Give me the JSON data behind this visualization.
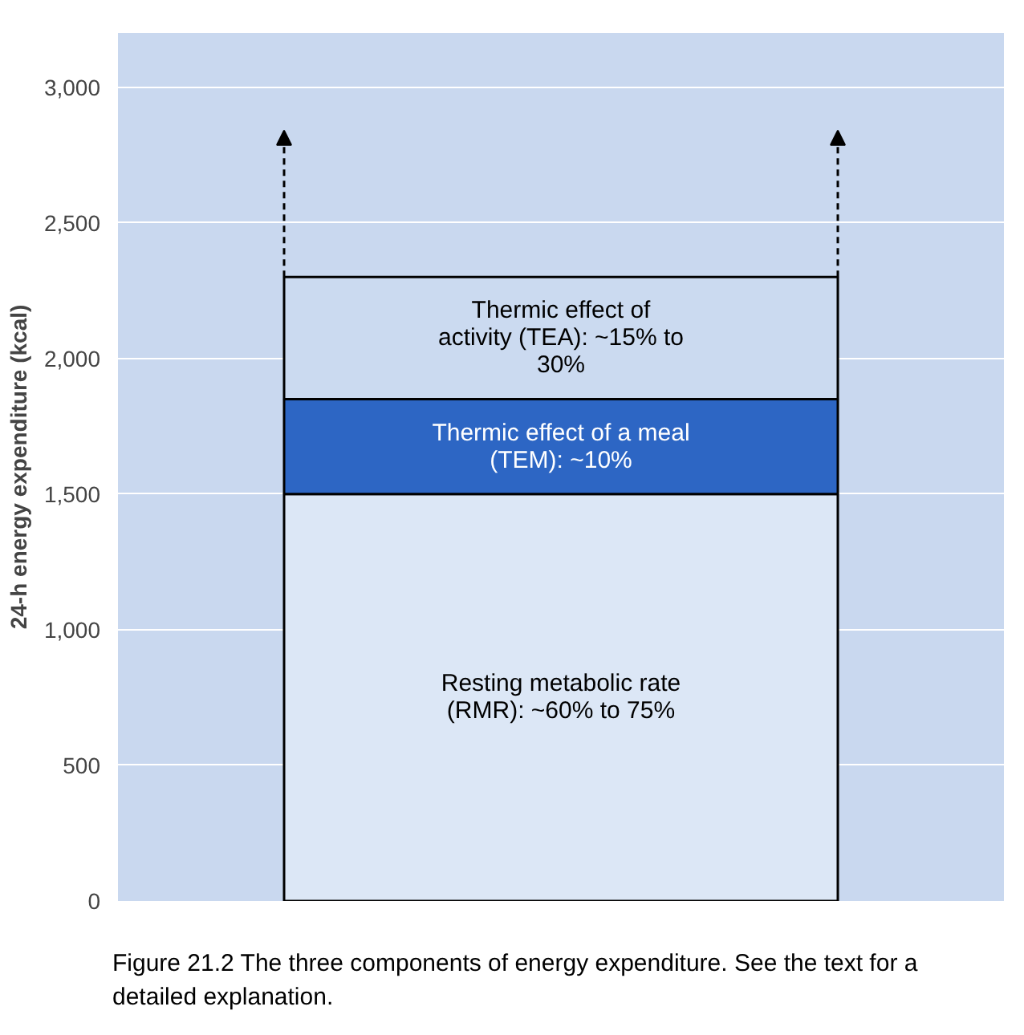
{
  "chart_data": {
    "type": "bar",
    "stacked": true,
    "categories": [
      null
    ],
    "series": [
      {
        "name": "Resting metabolic rate (RMR): ~60% to 75%",
        "color": "#dce7f6",
        "values": [
          1500
        ]
      },
      {
        "name": "Thermic effect of a meal (TEM): ~10%",
        "color": "#2d66c4",
        "values": [
          350
        ]
      },
      {
        "name": "Thermic effect of activity (TEA): ~15% to 30%",
        "color": "#cbdaf0",
        "values": [
          450
        ]
      }
    ],
    "ylabel": "24-h energy expenditure (kcal)",
    "ylim": [
      0,
      3200
    ],
    "yticks": [
      0,
      {
        "value": 500,
        "label": "500"
      },
      {
        "value": 1000,
        "label": "1,000"
      },
      {
        "value": 1500,
        "label": "1,500"
      },
      {
        "value": 2000,
        "label": "2,000"
      },
      {
        "value": 2500,
        "label": "2,500"
      },
      {
        "value": 3000,
        "label": "3,000"
      }
    ],
    "grid": "y",
    "annotations": [
      "Figure 21.2  The three components of energy expenditure. See the text for a detailed explanation."
    ]
  }
}
